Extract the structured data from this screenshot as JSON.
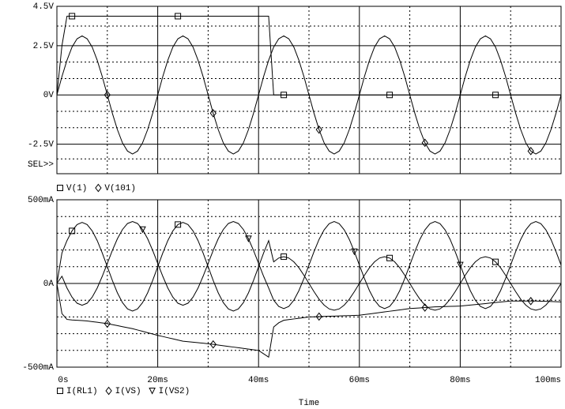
{
  "chart_data": [
    {
      "type": "line",
      "xlim": [
        0,
        100
      ],
      "ylim": [
        -4,
        4.5
      ],
      "yticks": [
        {
          "value": 4.5,
          "label": "4.5V"
        },
        {
          "value": 2.5,
          "label": "2.5V"
        },
        {
          "value": 0,
          "label": "0V"
        },
        {
          "value": -2.5,
          "label": "-2.5V"
        }
      ],
      "annotation": "SEL>>",
      "x": [
        0,
        1,
        2,
        3,
        4,
        5,
        6,
        7,
        8,
        9,
        10,
        11,
        12,
        13,
        14,
        15,
        16,
        17,
        18,
        19,
        20,
        21,
        22,
        23,
        24,
        25,
        26,
        27,
        28,
        29,
        30,
        31,
        32,
        33,
        34,
        35,
        36,
        37,
        38,
        39,
        40,
        41,
        42,
        43,
        44,
        45,
        46,
        47,
        48,
        49,
        50,
        51,
        52,
        53,
        54,
        55,
        56,
        57,
        58,
        59,
        60,
        61,
        62,
        63,
        64,
        65,
        66,
        67,
        68,
        69,
        70,
        71,
        72,
        73,
        74,
        75,
        76,
        77,
        78,
        79,
        80,
        81,
        82,
        83,
        84,
        85,
        86,
        87,
        88,
        89,
        90,
        91,
        92,
        93,
        94,
        95,
        96,
        97,
        98,
        99,
        100
      ],
      "series": [
        {
          "name": "V(1)",
          "color": "#000000",
          "marker": "square",
          "values": [
            0,
            2.5,
            4,
            4,
            4,
            4,
            4,
            4,
            4,
            4,
            4,
            4,
            4,
            4,
            4,
            4,
            4,
            4,
            4,
            4,
            4,
            4,
            4,
            4,
            4,
            4,
            4,
            4,
            4,
            4,
            4,
            4,
            4,
            4,
            4,
            4,
            4,
            4,
            4,
            4,
            4,
            4,
            4,
            0,
            0,
            0,
            0,
            0,
            0,
            0,
            0,
            0,
            0,
            0,
            0,
            0,
            0,
            0,
            0,
            0,
            0,
            0,
            0,
            0,
            0,
            0,
            0,
            0,
            0,
            0,
            0,
            0,
            0,
            0,
            0,
            0,
            0,
            0,
            0,
            0,
            0,
            0,
            0,
            0,
            0,
            0,
            0,
            0,
            0,
            0,
            0,
            0,
            0,
            0,
            0,
            0,
            0,
            0,
            0,
            0,
            0
          ]
        },
        {
          "name": "V(101)",
          "color": "#000000",
          "marker": "diamond",
          "values": [
            0,
            0.93,
            1.76,
            2.43,
            2.85,
            3,
            2.85,
            2.43,
            1.76,
            0.93,
            0,
            -0.93,
            -1.76,
            -2.43,
            -2.85,
            -3,
            -2.85,
            -2.43,
            -1.76,
            -0.93,
            0,
            0.93,
            1.76,
            2.43,
            2.85,
            3,
            2.85,
            2.43,
            1.76,
            0.93,
            0,
            -0.93,
            -1.76,
            -2.43,
            -2.85,
            -3,
            -2.85,
            -2.43,
            -1.76,
            -0.93,
            0,
            0.93,
            1.76,
            2.43,
            2.85,
            3,
            2.85,
            2.43,
            1.76,
            0.93,
            0,
            -0.93,
            -1.76,
            -2.43,
            -2.85,
            -3,
            -2.85,
            -2.43,
            -1.76,
            -0.93,
            0,
            0.93,
            1.76,
            2.43,
            2.85,
            3,
            2.85,
            2.43,
            1.76,
            0.93,
            0,
            -0.93,
            -1.76,
            -2.43,
            -2.85,
            -3,
            -2.85,
            -2.43,
            -1.76,
            -0.93,
            0,
            0.93,
            1.76,
            2.43,
            2.85,
            3,
            2.85,
            2.43,
            1.76,
            0.93,
            0,
            -0.93,
            -1.76,
            -2.43,
            -2.85,
            -3,
            -2.85,
            -2.43,
            -1.76,
            -0.93,
            0
          ]
        }
      ]
    },
    {
      "type": "line",
      "xlim": [
        0,
        100
      ],
      "ylim": [
        -500,
        500
      ],
      "xlabel": "Time",
      "xticks": [
        {
          "value": 0,
          "label": "0s"
        },
        {
          "value": 20,
          "label": "20ms"
        },
        {
          "value": 40,
          "label": "40ms"
        },
        {
          "value": 60,
          "label": "60ms"
        },
        {
          "value": 80,
          "label": "80ms"
        },
        {
          "value": 100,
          "label": "100ms"
        }
      ],
      "yticks": [
        {
          "value": 500,
          "label": "500mA"
        },
        {
          "value": 0,
          "label": "0A"
        },
        {
          "value": -500,
          "label": "-500mA"
        }
      ],
      "x": [
        0,
        1,
        2,
        3,
        4,
        5,
        6,
        7,
        8,
        9,
        10,
        11,
        12,
        13,
        14,
        15,
        16,
        17,
        18,
        19,
        20,
        21,
        22,
        23,
        24,
        25,
        26,
        27,
        28,
        29,
        30,
        31,
        32,
        33,
        34,
        35,
        36,
        37,
        38,
        39,
        40,
        41,
        42,
        43,
        44,
        45,
        46,
        47,
        48,
        49,
        50,
        51,
        52,
        53,
        54,
        55,
        56,
        57,
        58,
        59,
        60,
        61,
        62,
        63,
        64,
        65,
        66,
        67,
        68,
        69,
        70,
        71,
        72,
        73,
        74,
        75,
        76,
        77,
        78,
        79,
        80,
        81,
        82,
        83,
        84,
        85,
        86,
        87,
        88,
        89,
        90,
        91,
        92,
        93,
        94,
        95,
        96,
        97,
        98,
        99,
        100
      ],
      "series": [
        {
          "name": "I(RL1)",
          "color": "#000000",
          "marker": "square",
          "values": [
            0,
            182,
            256,
            314,
            352,
            365,
            352,
            314,
            256,
            182,
            100,
            18,
            -56,
            -114,
            -152,
            -165,
            -152,
            -114,
            -56,
            18,
            100,
            182,
            256,
            314,
            352,
            365,
            352,
            314,
            256,
            182,
            100,
            18,
            -56,
            -114,
            -152,
            -165,
            -152,
            -114,
            -56,
            18,
            100,
            182,
            256,
            129,
            152,
            160,
            152,
            129,
            94,
            49,
            0,
            -49,
            -94,
            -129,
            -152,
            -160,
            -152,
            -129,
            -94,
            -49,
            0,
            49,
            94,
            129,
            152,
            160,
            152,
            129,
            94,
            49,
            0,
            -49,
            -94,
            -129,
            -152,
            -160,
            -152,
            -129,
            -94,
            -49,
            0,
            49,
            94,
            129,
            152,
            160,
            152,
            129,
            94,
            49,
            0,
            -49,
            -94,
            -129,
            -152,
            -160,
            -152,
            -129,
            -94,
            -49,
            0
          ]
        },
        {
          "name": "I(VS)",
          "color": "#000000",
          "marker": "diamond",
          "values": [
            0,
            -180,
            -215,
            -218,
            -220,
            -222,
            -224,
            -228,
            -232,
            -236,
            -240,
            -246,
            -252,
            -258,
            -264,
            -270,
            -278,
            -286,
            -294,
            -302,
            -310,
            -317,
            -324,
            -331,
            -338,
            -345,
            -348,
            -351,
            -354,
            -357,
            -360,
            -364,
            -368,
            -372,
            -376,
            -380,
            -384,
            -388,
            -392,
            -396,
            -400,
            -420,
            -440,
            -260,
            -235,
            -220,
            -216,
            -212,
            -208,
            -204,
            -200,
            -199,
            -198,
            -197,
            -196,
            -195,
            -194,
            -193,
            -192,
            -191,
            -190,
            -186,
            -182,
            -178,
            -174,
            -170,
            -166,
            -162,
            -158,
            -154,
            -150,
            -148,
            -146,
            -144,
            -142,
            -140,
            -139,
            -138,
            -137,
            -136,
            -135,
            -132,
            -129,
            -126,
            -123,
            -120,
            -117,
            -114,
            -111,
            -108,
            -105,
            -105,
            -105,
            -105,
            -105,
            -105,
            -106,
            -107,
            -108,
            -109,
            -110
          ]
        },
        {
          "name": "I(VS2)",
          "color": "#000000",
          "marker": "triangle",
          "values": [
            0,
            43,
            -27,
            -82,
            -118,
            -130,
            -118,
            -82,
            -27,
            43,
            120,
            197,
            267,
            322,
            358,
            370,
            358,
            322,
            267,
            197,
            120,
            43,
            -27,
            -82,
            -118,
            -130,
            -118,
            -82,
            -27,
            43,
            120,
            197,
            267,
            322,
            358,
            370,
            358,
            322,
            267,
            197,
            120,
            43,
            -27,
            -100,
            -137,
            -150,
            -137,
            -100,
            -43,
            30,
            110,
            190,
            263,
            320,
            357,
            370,
            357,
            320,
            263,
            190,
            110,
            30,
            -43,
            -100,
            -137,
            -150,
            -137,
            -100,
            -43,
            30,
            110,
            190,
            263,
            320,
            357,
            370,
            357,
            320,
            263,
            190,
            110,
            30,
            -43,
            -100,
            -137,
            -150,
            -137,
            -100,
            -43,
            30,
            110,
            190,
            263,
            320,
            357,
            370,
            357,
            320,
            263,
            190,
            110
          ]
        }
      ]
    }
  ]
}
